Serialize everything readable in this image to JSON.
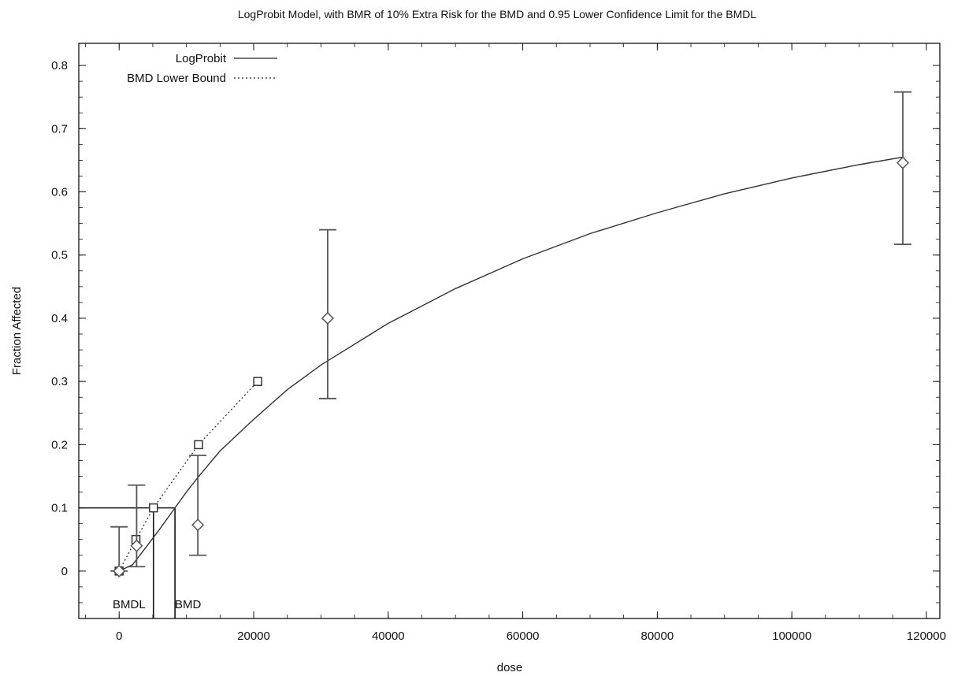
{
  "chart_data": {
    "type": "scatter",
    "title": "LogProbit Model, with BMR of 10% Extra Risk for the BMD and 0.95 Lower Confidence Limit for the BMDL",
    "xlabel": "dose",
    "ylabel": "Fraction Affected",
    "xlim": [
      -6000,
      122000
    ],
    "ylim": [
      -0.075,
      0.835
    ],
    "xticks": [
      0,
      20000,
      40000,
      60000,
      80000,
      100000,
      120000
    ],
    "yticks": [
      0,
      0.1,
      0.2,
      0.3,
      0.4,
      0.5,
      0.6,
      0.7,
      0.8
    ],
    "grid": false,
    "legend_position": "top-left",
    "legend": [
      {
        "label": "LogProbit",
        "style": "solid"
      },
      {
        "label": "BMD Lower Bound",
        "style": "dotted"
      }
    ],
    "observed": [
      {
        "x": 0,
        "y": 0.0,
        "lower": 0.0,
        "upper": 0.07
      },
      {
        "x": 2600,
        "y": 0.04,
        "lower": 0.007,
        "upper": 0.136
      },
      {
        "x": 11700,
        "y": 0.073,
        "lower": 0.025,
        "upper": 0.183
      },
      {
        "x": 31000,
        "y": 0.4,
        "lower": 0.273,
        "upper": 0.54
      },
      {
        "x": 116500,
        "y": 0.646,
        "lower": 0.517,
        "upper": 0.758
      }
    ],
    "logprobit_curve": {
      "x": [
        0,
        2000,
        4000,
        6000,
        8300,
        10000,
        12000,
        15000,
        20000,
        25000,
        30000,
        40000,
        50000,
        60000,
        70000,
        80000,
        90000,
        100000,
        110000,
        116500
      ],
      "y": [
        0,
        0.01,
        0.038,
        0.066,
        0.1,
        0.125,
        0.152,
        0.19,
        0.24,
        0.287,
        0.326,
        0.392,
        0.447,
        0.494,
        0.534,
        0.567,
        0.597,
        0.622,
        0.643,
        0.655
      ]
    },
    "bmd_lower_bound": {
      "x": [
        0,
        2500,
        5100,
        11800,
        20600
      ],
      "y": [
        0,
        0.05,
        0.1,
        0.2,
        0.3
      ]
    },
    "bmr": 0.1,
    "bmd": 8300,
    "bmdl": 5100,
    "bmd_label": "BMD",
    "bmdl_label": "BMDL"
  }
}
